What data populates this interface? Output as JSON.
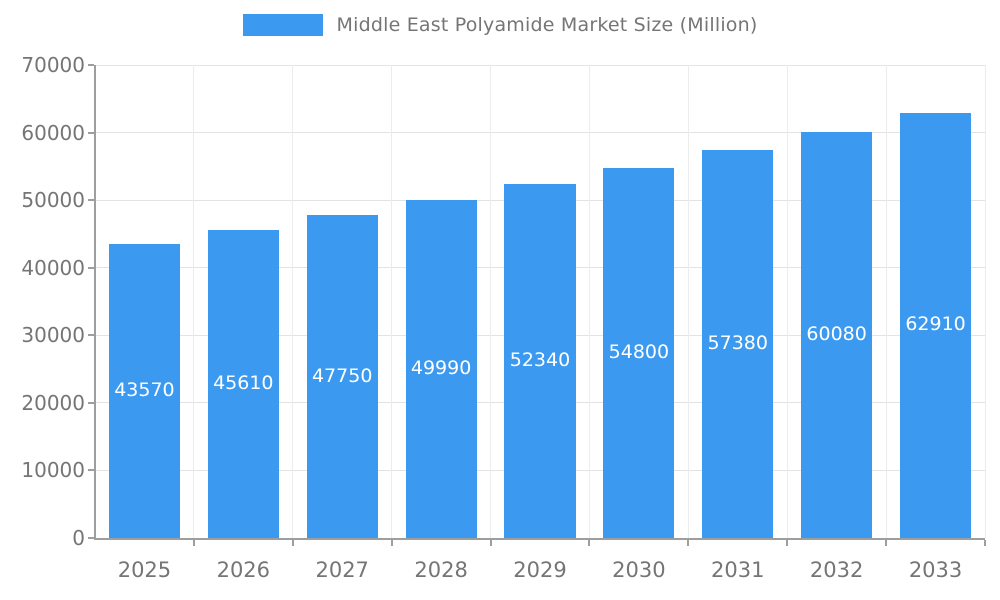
{
  "legend": {
    "title": "Middle East Polyamide Market Size (Million)"
  },
  "colors": {
    "bar": "#3b99f0",
    "grid_h": "#e3e3e3",
    "grid_v": "#ececec",
    "axis": "#9e9e9e",
    "text": "#757575",
    "bar_label": "#ffffff",
    "background": "#ffffff"
  },
  "chart_data": {
    "type": "bar",
    "title": "Middle East Polyamide Market Size (Million)",
    "categories": [
      "2025",
      "2026",
      "2027",
      "2028",
      "2029",
      "2030",
      "2031",
      "2032",
      "2033"
    ],
    "values": [
      43570,
      45610,
      47750,
      49990,
      52340,
      54800,
      57380,
      60080,
      62910
    ],
    "series": [
      {
        "name": "Middle East Polyamide Market Size (Million)",
        "values": [
          43570,
          45610,
          47750,
          49990,
          52340,
          54800,
          57380,
          60080,
          62910
        ]
      }
    ],
    "xlabel": "",
    "ylabel": "",
    "ylim": [
      0,
      70000
    ],
    "ytick_step": 10000,
    "ytick_labels": [
      "0",
      "10000",
      "20000",
      "30000",
      "40000",
      "50000",
      "60000",
      "70000"
    ],
    "grid": true,
    "legend_position": "top-center",
    "bar_value_labels": "inside-center-white"
  }
}
